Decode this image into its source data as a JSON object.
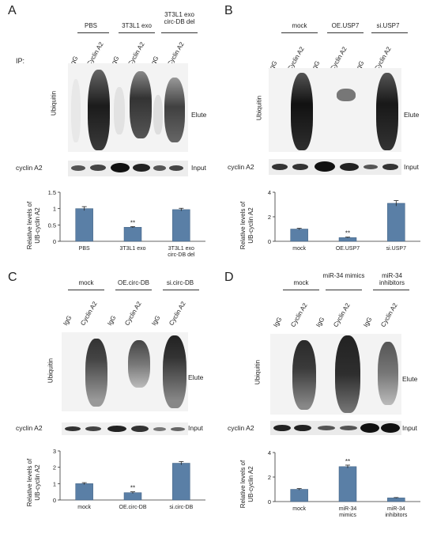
{
  "ip_label": "IP:",
  "panels": [
    {
      "key": "A",
      "letter": "A",
      "groups": [
        "PBS",
        "3T3L1 exo",
        "3T3L1 exo circ-DB del"
      ],
      "lanes": [
        "IgG",
        "Cyclin A2",
        "IgG",
        "Cyclin A2",
        "IgG",
        "Cyclin A2"
      ],
      "blot_label": "Ubiquitin",
      "elute_label": "Elute",
      "input_protein": "cyclin A2",
      "input_label": "Input",
      "ylabel_line1": "Relative levels of",
      "ylabel_line2": "UB-cyclin A2",
      "chart_data": {
        "type": "bar",
        "categories": [
          "PBS",
          "3T3L1 exo",
          "3T3L1 exo circ-DB del"
        ],
        "values": [
          1.0,
          0.43,
          0.97
        ],
        "errors": [
          0.06,
          0.02,
          0.04
        ],
        "annotations": [
          "",
          "**",
          ""
        ],
        "yticks": [
          "0",
          "0.5",
          "1",
          "1.5"
        ],
        "ylim": [
          0,
          1.5
        ],
        "ylabel": "Relative levels of UB-cyclin A2",
        "bar_color": "#5a7fa6"
      }
    },
    {
      "key": "B",
      "letter": "B",
      "groups": [
        "mock",
        "OE.USP7",
        "si.USP7"
      ],
      "lanes": [
        "IgG",
        "Cyclin A2",
        "IgG",
        "Cyclin A2",
        "IgG",
        "Cyclin A2"
      ],
      "blot_label": "Ubiquitin",
      "elute_label": "Elute",
      "input_protein": "cyclin A2",
      "input_label": "Input",
      "ylabel_line1": "Relative levels of",
      "ylabel_line2": "UB-cyclin A2",
      "chart_data": {
        "type": "bar",
        "categories": [
          "mock",
          "OE.USP7",
          "si.USP7"
        ],
        "values": [
          1.0,
          0.3,
          3.1
        ],
        "errors": [
          0.06,
          0.04,
          0.22
        ],
        "annotations": [
          "",
          "**",
          ""
        ],
        "yticks": [
          "0",
          "2",
          "4"
        ],
        "ylim": [
          0,
          4
        ],
        "ylabel": "Relative levels of UB-cyclin A2",
        "bar_color": "#5a7fa6"
      }
    },
    {
      "key": "C",
      "letter": "C",
      "groups": [
        "mock",
        "OE.circ-DB",
        "si.circ-DB"
      ],
      "lanes": [
        "IgG",
        "Cyclin A2",
        "IgG",
        "Cyclin A2",
        "IgG",
        "Cyclin A2"
      ],
      "blot_label": "Ubiquitin",
      "elute_label": "Elute",
      "input_protein": "cyclin A2",
      "input_label": "Input",
      "ylabel_line1": "Relative levels of",
      "ylabel_line2": "UB-cyclin A2",
      "chart_data": {
        "type": "bar",
        "categories": [
          "mock",
          "OE.circ-DB",
          "si.circ-DB"
        ],
        "values": [
          1.0,
          0.45,
          2.25
        ],
        "errors": [
          0.06,
          0.05,
          0.1
        ],
        "annotations": [
          "",
          "**",
          ""
        ],
        "yticks": [
          "0",
          "1",
          "2",
          "3"
        ],
        "ylim": [
          0,
          3
        ],
        "ylabel": "Relative levels of UB-cyclin A2",
        "bar_color": "#5a7fa6"
      }
    },
    {
      "key": "D",
      "letter": "D",
      "groups": [
        "mock",
        "miR-34 mimics",
        "miR-34 inhibitors"
      ],
      "lanes": [
        "IgG",
        "Cyclin A2",
        "IgG",
        "Cyclin A2",
        "IgG",
        "Cyclin A2"
      ],
      "blot_label": "Ubiquitin",
      "elute_label": "Elute",
      "input_protein": "cyclin A2",
      "input_label": "Input",
      "ylabel_line1": "Relative levels of",
      "ylabel_line2": "UB-cyclin A2",
      "chart_data": {
        "type": "bar",
        "categories": [
          "mock",
          "miR-34 mimics",
          "miR-34 inhibitors"
        ],
        "values": [
          1.0,
          2.85,
          0.3
        ],
        "errors": [
          0.06,
          0.12,
          0.03
        ],
        "annotations": [
          "",
          "**",
          ""
        ],
        "yticks": [
          "0",
          "2",
          "4"
        ],
        "ylim": [
          0,
          4
        ],
        "ylabel": "Relative levels of UB-cyclin A2",
        "bar_color": "#5a7fa6"
      }
    }
  ]
}
